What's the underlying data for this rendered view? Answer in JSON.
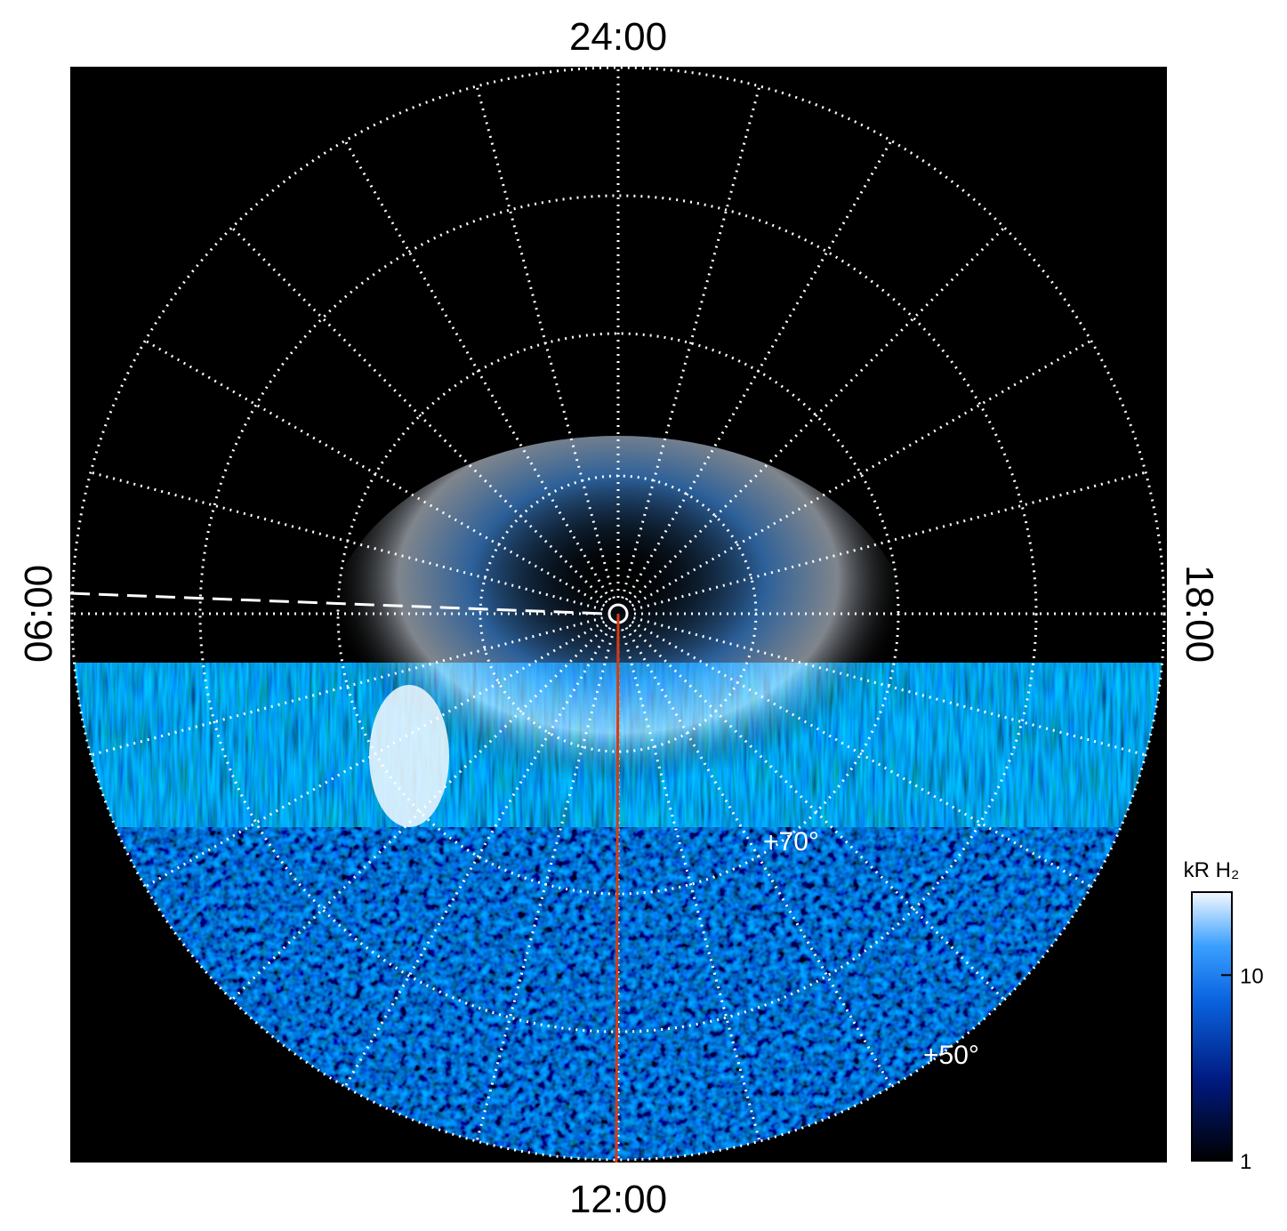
{
  "figure": {
    "labels": {
      "top": "24:00",
      "bottom": "12:00",
      "left": "06:00",
      "right": "18:00"
    },
    "latitude_labels": [
      "+70°",
      "+50°"
    ],
    "colorbar": {
      "title": "kR H₂",
      "scale": "log",
      "lim": [
        1,
        28
      ],
      "ticks": [
        10,
        1
      ]
    }
  }
}
